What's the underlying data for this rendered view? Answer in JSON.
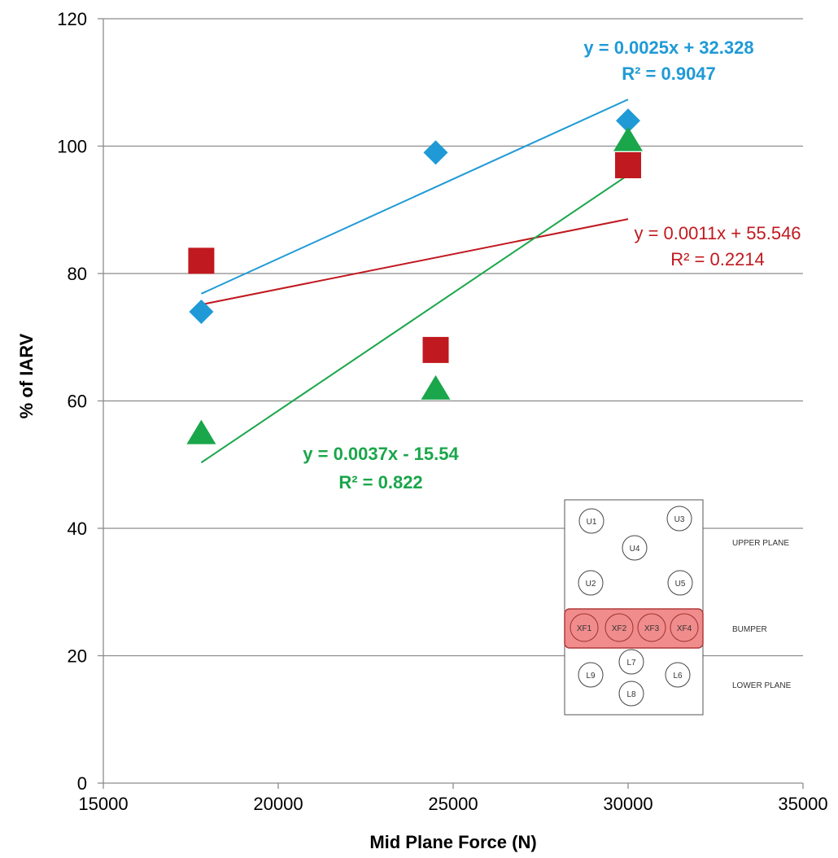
{
  "chart_data": {
    "type": "scatter",
    "title": "",
    "xlabel": "Mid Plane Force (N)",
    "ylabel": "% of IARV",
    "xlim": [
      15000,
      35000
    ],
    "ylim": [
      0,
      120
    ],
    "x_ticks": [
      "15000",
      "20000",
      "25000",
      "30000",
      "35000"
    ],
    "y_ticks": [
      "0",
      "20",
      "40",
      "60",
      "80",
      "100",
      "120"
    ],
    "grid": "horizontal",
    "series": [
      {
        "marker": "diamond",
        "color": "#1f9ad6",
        "points": [
          {
            "x": 17800,
            "y": 74
          },
          {
            "x": 24500,
            "y": 99
          },
          {
            "x": 30000,
            "y": 104
          }
        ],
        "trendline": {
          "slope": 0.0025,
          "intercept": 32.328,
          "x_range": [
            17800,
            30000
          ],
          "equation": "y = 0.0025x + 32.328",
          "r2": "R² = 0.9047",
          "bold": true
        }
      },
      {
        "marker": "square",
        "color": "#c0191f",
        "points": [
          {
            "x": 17800,
            "y": 82
          },
          {
            "x": 24500,
            "y": 68
          },
          {
            "x": 30000,
            "y": 97
          }
        ],
        "trendline": {
          "slope": 0.0011,
          "intercept": 55.546,
          "x_range": [
            17800,
            30000
          ],
          "equation": "y = 0.0011x + 55.546",
          "r2": "R² = 0.2214",
          "bold": false
        }
      },
      {
        "marker": "triangle",
        "color": "#1aa64a",
        "points": [
          {
            "x": 17800,
            "y": 55
          },
          {
            "x": 24500,
            "y": 62
          },
          {
            "x": 30000,
            "y": 101
          }
        ],
        "trendline": {
          "slope": 0.0037,
          "intercept": -15.54,
          "x_range": [
            17800,
            30000
          ],
          "equation": "y = 0.0037x - 15.54",
          "r2": "R² = 0.822",
          "bold": true
        }
      }
    ]
  },
  "inset": {
    "upper_label": "UPPER PLANE",
    "bumper_label": "BUMPER",
    "lower_label": "LOWER PLANE",
    "bumper_fill": "#f08c8c",
    "sensors": [
      "U1",
      "U3",
      "U4",
      "U2",
      "U5",
      "XF1",
      "XF2",
      "XF3",
      "XF4",
      "L7",
      "L9",
      "L6",
      "L8"
    ]
  }
}
